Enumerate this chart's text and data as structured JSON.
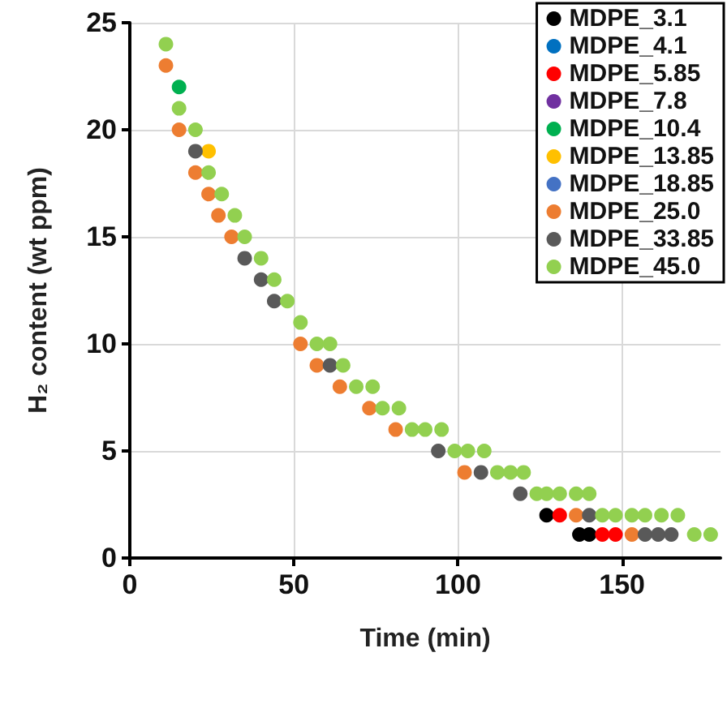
{
  "chart_data": {
    "type": "scatter",
    "xlabel": "Time (min)",
    "ylabel": "H₂ content (wt ppm)",
    "xlim": [
      0,
      180
    ],
    "xticks": [
      0,
      50,
      100,
      150
    ],
    "ylim": [
      0,
      25
    ],
    "yticks": [
      0,
      5,
      10,
      15,
      20,
      25
    ],
    "grid": true,
    "legend": "top right",
    "marker": "circle",
    "series": [
      {
        "name": "MDPE_3.1",
        "color": "#000000",
        "x": [
          127,
          137,
          140
        ],
        "values": [
          2,
          1.1,
          1.1
        ]
      },
      {
        "name": "MDPE_4.1",
        "color": "#0070c0"
      },
      {
        "name": "MDPE_5.85",
        "color": "#ff0000",
        "x": [
          131,
          144,
          148
        ],
        "values": [
          2,
          1.1,
          1.1
        ]
      },
      {
        "name": "MDPE_7.8",
        "color": "#7030a0"
      },
      {
        "name": "MDPE_10.4",
        "color": "#00b050",
        "x": [
          15
        ],
        "values": [
          22
        ]
      },
      {
        "name": "MDPE_13.85",
        "color": "#ffc000",
        "x": [
          24
        ],
        "values": [
          19
        ]
      },
      {
        "name": "MDPE_18.85",
        "color": "#4472c4"
      },
      {
        "name": "MDPE_25.0",
        "color": "#ed7d31",
        "x": [
          11,
          15,
          20,
          24,
          27,
          31,
          52,
          57,
          64,
          73,
          81,
          102,
          136,
          153
        ],
        "values": [
          23,
          20,
          18,
          17,
          16,
          15,
          10,
          9,
          8,
          7,
          6,
          4,
          2,
          1.1
        ]
      },
      {
        "name": "MDPE_33.85",
        "color": "#595959",
        "x": [
          20,
          35,
          40,
          44,
          61,
          94,
          107,
          119,
          140,
          157,
          161,
          165
        ],
        "values": [
          19,
          14,
          13,
          12,
          9,
          5,
          4,
          3,
          2,
          1.1,
          1.1,
          1.1
        ]
      },
      {
        "name": "MDPE_45.0",
        "color": "#92d050",
        "x": [
          11,
          15,
          20,
          24,
          28,
          32,
          35,
          40,
          44,
          48,
          52,
          57,
          61,
          65,
          69,
          74,
          77,
          82,
          86,
          90,
          95,
          99,
          103,
          108,
          112,
          116,
          120,
          124,
          127,
          131,
          136,
          140,
          144,
          148,
          153,
          157,
          162,
          167,
          172,
          177
        ],
        "values": [
          24,
          21,
          20,
          18,
          17,
          16,
          15,
          14,
          13,
          12,
          11,
          10,
          10,
          9,
          8,
          8,
          7,
          7,
          6,
          6,
          6,
          5,
          5,
          5,
          4,
          4,
          4,
          3,
          3,
          3,
          3,
          3,
          2,
          2,
          2,
          2,
          2,
          2,
          1.1,
          1.1
        ]
      }
    ]
  }
}
